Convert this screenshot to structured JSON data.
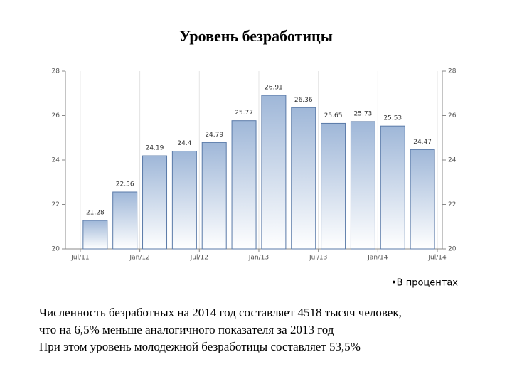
{
  "title": "Уровень безработицы",
  "chart_data": {
    "type": "bar",
    "x": [
      1.5,
      4.5,
      7.5,
      10.5,
      13.5,
      16.5,
      19.5,
      22.5,
      25.5,
      28.5,
      31.5,
      34.5
    ],
    "values": [
      21.28,
      22.56,
      24.19,
      24.4,
      24.79,
      25.77,
      26.91,
      26.36,
      25.65,
      25.73,
      25.53,
      24.47
    ],
    "color": "#b7c9e2",
    "xlim": [
      -1.5,
      36.5
    ],
    "xticks": [
      {
        "value": 0,
        "label": "Jul/11"
      },
      {
        "value": 6,
        "label": "Jan/12"
      },
      {
        "value": 12,
        "label": "Jul/12"
      },
      {
        "value": 18,
        "label": "Jan/13"
      },
      {
        "value": 24,
        "label": "Jul/13"
      },
      {
        "value": 30,
        "label": "Jan/14"
      },
      {
        "value": 36,
        "label": "Jul/14"
      }
    ],
    "ylim": [
      20,
      28
    ],
    "yticks": [
      20,
      22,
      24,
      26,
      28
    ],
    "grid": true
  },
  "note": "•В процентах",
  "text": [
    "Численность безработных на 2014 год составляет 4518 тысяч человек,",
    "что на 6,5% меньше аналогичного показателя за 2013 год",
    "При этом уровень молодежной безработицы составляет 53,5%"
  ]
}
